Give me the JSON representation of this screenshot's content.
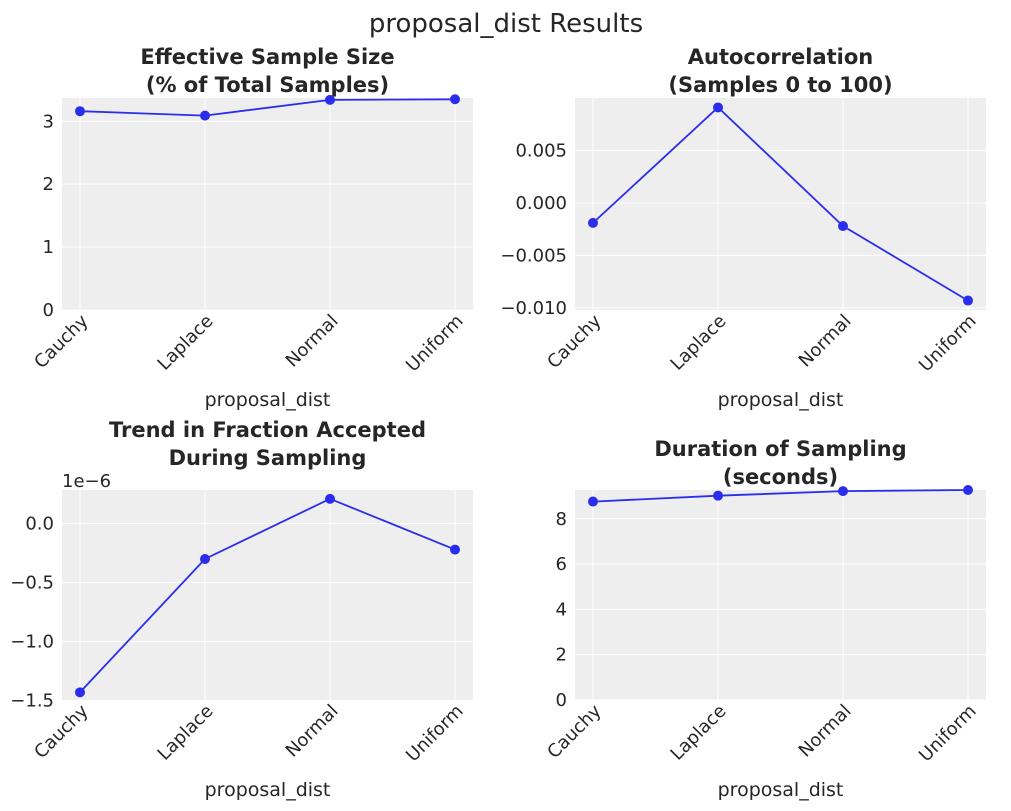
{
  "figure": {
    "title": "proposal_dist Results"
  },
  "colors": {
    "series": "#2a2eec",
    "background": "#eeeeee",
    "grid": "#ffffff",
    "text": "#262626"
  },
  "chart_data": [
    {
      "type": "line",
      "title": "Effective Sample Size\n(% of Total Samples)",
      "xlabel": "proposal_dist",
      "ylabel": "",
      "categories": [
        "Cauchy",
        "Laplace",
        "Normal",
        "Uniform"
      ],
      "values": [
        3.16,
        3.09,
        3.34,
        3.35
      ],
      "ylim": [
        0,
        3.37
      ],
      "yticks": [
        0,
        1,
        2,
        3
      ],
      "ytick_labels": [
        "0",
        "1",
        "2",
        "3"
      ],
      "offset_text": "",
      "grid": true
    },
    {
      "type": "line",
      "title": "Autocorrelation\n(Samples 0 to 100)",
      "xlabel": "proposal_dist",
      "ylabel": "",
      "categories": [
        "Cauchy",
        "Laplace",
        "Normal",
        "Uniform"
      ],
      "values": [
        -0.0019,
        0.0091,
        -0.0022,
        -0.0093
      ],
      "ylim": [
        -0.0102,
        0.01
      ],
      "yticks": [
        -0.01,
        -0.005,
        0.0,
        0.005
      ],
      "ytick_labels": [
        "−0.010",
        "−0.005",
        "0.000",
        "0.005"
      ],
      "offset_text": "",
      "grid": true
    },
    {
      "type": "line",
      "title": "Trend in Fraction Accepted\nDuring Sampling",
      "xlabel": "proposal_dist",
      "ylabel": "",
      "categories": [
        "Cauchy",
        "Laplace",
        "Normal",
        "Uniform"
      ],
      "values": [
        -1.43,
        -0.3,
        0.21,
        -0.22
      ],
      "ylim": [
        -1.495,
        0.285
      ],
      "yticks": [
        -1.5,
        -1.0,
        -0.5,
        0.0
      ],
      "ytick_labels": [
        "−1.5",
        "−1.0",
        "−0.5",
        "0.0"
      ],
      "offset_text": "1e−6",
      "grid": true
    },
    {
      "type": "line",
      "title": "Duration of Sampling\n(seconds)",
      "xlabel": "proposal_dist",
      "ylabel": "",
      "categories": [
        "Cauchy",
        "Laplace",
        "Normal",
        "Uniform"
      ],
      "values": [
        8.76,
        9.02,
        9.22,
        9.27
      ],
      "ylim": [
        0,
        9.27
      ],
      "yticks": [
        0,
        2,
        4,
        6,
        8
      ],
      "ytick_labels": [
        "0",
        "2",
        "4",
        "6",
        "8"
      ],
      "offset_text": "",
      "grid": true
    }
  ]
}
